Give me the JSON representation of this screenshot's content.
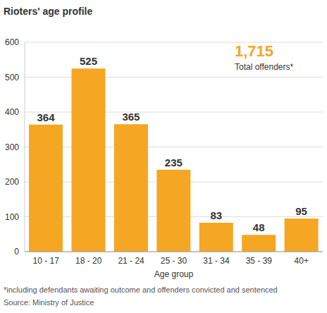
{
  "chart_data": {
    "type": "bar",
    "title": "Rioters' age profile",
    "categories": [
      "10 - 17",
      "18 - 20",
      "21 - 24",
      "25 - 30",
      "31 - 34",
      "35 - 39",
      "40+"
    ],
    "values": [
      364,
      525,
      365,
      235,
      83,
      48,
      95
    ],
    "color": "#f5a623",
    "ylim": [
      0,
      600
    ],
    "yticks": [
      0,
      100,
      200,
      300,
      400,
      500,
      600
    ],
    "grid": true,
    "data_labels": true,
    "x_label": "Age group",
    "annotations": [
      "1,715",
      "Total offenders*"
    ],
    "footnote": "*including defendants awaiting outcome and offenders convicted and sentenced",
    "source": "Source: Ministry of Justice"
  }
}
